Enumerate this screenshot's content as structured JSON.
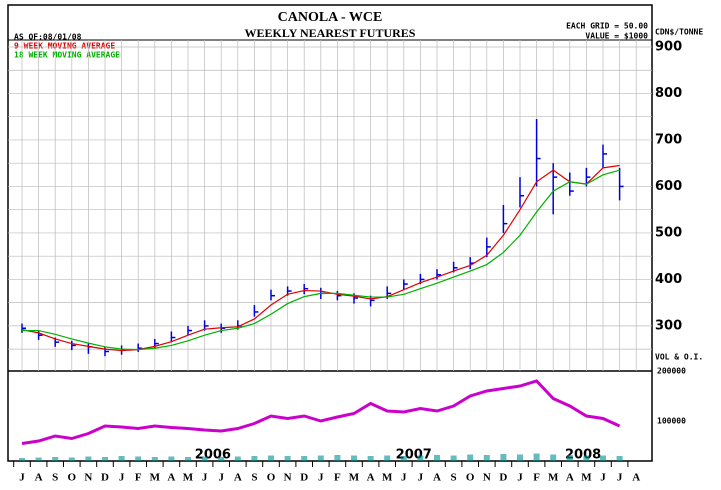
{
  "chart_data": {
    "type": "bar",
    "title": "CANOLA - WCE",
    "subtitle": "WEEKLY NEAREST FUTURES",
    "as_of": "AS OF:08/01/08",
    "grid_note": "EACH GRID = 50.00",
    "value_note": "VALUE = $1000",
    "y_label": "CDN$/TONNE",
    "lower_label": "VOL & O.I.",
    "years": [
      "2006",
      "2007",
      "2008"
    ],
    "categories": [
      "J",
      "A",
      "S",
      "O",
      "N",
      "D",
      "J",
      "F",
      "M",
      "A",
      "M",
      "J",
      "J",
      "A",
      "S",
      "O",
      "N",
      "D",
      "J",
      "F",
      "M",
      "A",
      "M",
      "J",
      "J",
      "A",
      "S",
      "O",
      "N",
      "D",
      "J",
      "F",
      "M",
      "A",
      "M",
      "J",
      "J",
      "A"
    ],
    "high": [
      305,
      290,
      275,
      268,
      262,
      255,
      258,
      262,
      272,
      288,
      300,
      312,
      305,
      312,
      345,
      378,
      385,
      390,
      382,
      375,
      370,
      365,
      385,
      400,
      412,
      422,
      438,
      448,
      490,
      560,
      620,
      745,
      650,
      630,
      640,
      690,
      640,
      null
    ],
    "low": [
      285,
      270,
      255,
      248,
      240,
      235,
      238,
      244,
      252,
      265,
      280,
      290,
      285,
      292,
      320,
      355,
      365,
      368,
      358,
      355,
      348,
      342,
      358,
      378,
      390,
      400,
      415,
      422,
      448,
      500,
      555,
      600,
      540,
      580,
      600,
      640,
      570,
      null
    ],
    "close": [
      295,
      280,
      265,
      258,
      255,
      245,
      248,
      252,
      262,
      275,
      290,
      300,
      295,
      300,
      330,
      365,
      375,
      380,
      370,
      365,
      360,
      355,
      370,
      390,
      400,
      410,
      425,
      435,
      470,
      520,
      580,
      660,
      620,
      590,
      620,
      670,
      600,
      null
    ],
    "series": [
      {
        "name": "9 WEEK MOVING AVERAGE",
        "color": "#e00000",
        "values": [
          292,
          285,
          272,
          262,
          256,
          250,
          247,
          249,
          256,
          266,
          280,
          293,
          296,
          298,
          315,
          345,
          368,
          376,
          375,
          368,
          364,
          358,
          363,
          378,
          393,
          405,
          418,
          430,
          452,
          495,
          550,
          610,
          635,
          610,
          605,
          640,
          645,
          null
        ]
      },
      {
        "name": "18 WEEK MOVING AVERAGE",
        "color": "#00b000",
        "values": [
          290,
          290,
          282,
          272,
          263,
          255,
          250,
          249,
          252,
          258,
          268,
          280,
          290,
          295,
          305,
          325,
          348,
          363,
          370,
          370,
          366,
          362,
          362,
          368,
          380,
          392,
          405,
          418,
          432,
          458,
          495,
          545,
          590,
          610,
          605,
          625,
          635,
          null
        ]
      }
    ],
    "open_interest": {
      "name": "O.I.",
      "color": "#cc00cc",
      "values": [
        55000,
        60000,
        70000,
        65000,
        75000,
        90000,
        88000,
        85000,
        90000,
        87000,
        85000,
        82000,
        80000,
        85000,
        95000,
        110000,
        105000,
        110000,
        100000,
        108000,
        115000,
        135000,
        120000,
        118000,
        125000,
        120000,
        130000,
        150000,
        160000,
        165000,
        170000,
        180000,
        145000,
        130000,
        110000,
        105000,
        90000,
        null
      ]
    },
    "volume": {
      "name": "VOL",
      "color": "#009090",
      "values": [
        26000,
        27000,
        28000,
        27000,
        29000,
        28000,
        30000,
        29000,
        28000,
        29000,
        28000,
        29000,
        28000,
        29000,
        30000,
        31000,
        30000,
        30000,
        31000,
        32000,
        31000,
        30000,
        31000,
        30000,
        31000,
        32000,
        31000,
        33000,
        32000,
        34000,
        33000,
        35000,
        33000,
        32000,
        31000,
        31000,
        30000,
        null
      ]
    },
    "bar_color": "#0000dd",
    "ylim": [
      203,
      915
    ],
    "yticks": [
      300,
      400,
      500,
      600,
      700,
      800,
      900
    ],
    "ygrid": [
      250,
      300,
      350,
      400,
      450,
      500,
      550,
      600,
      650,
      700,
      750,
      800,
      850,
      900
    ],
    "y2lim": [
      20000,
      200000
    ],
    "y2ticks": [
      100000,
      200000
    ],
    "grid": true
  }
}
